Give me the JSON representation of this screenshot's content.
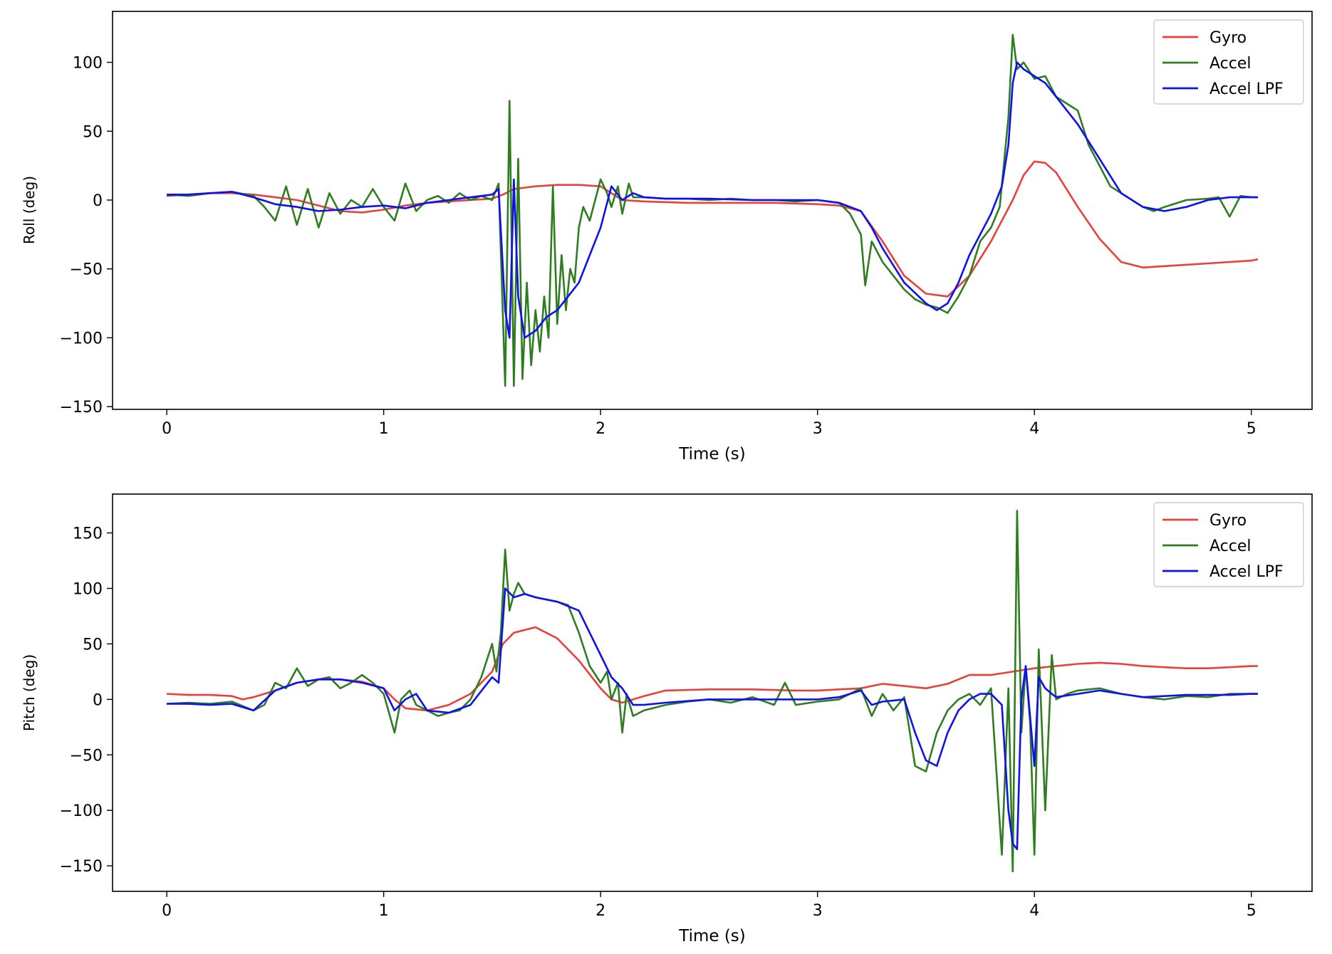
{
  "chart_data": [
    {
      "type": "line",
      "xlabel": "Time (s)",
      "ylabel": "Roll (deg)",
      "xlim": [
        -0.25,
        5.28
      ],
      "ylim": [
        -152,
        137
      ],
      "xticks": [
        0,
        1,
        2,
        3,
        4,
        5
      ],
      "yticks": [
        -150,
        -100,
        -50,
        0,
        50,
        100
      ],
      "grid": false,
      "legend": {
        "position": "top-right",
        "entries": [
          "Gyro",
          "Accel",
          "Accel LPF"
        ]
      },
      "series": [
        {
          "name": "Gyro",
          "color": "#e8403a",
          "x": [
            0,
            0.1,
            0.2,
            0.3,
            0.4,
            0.5,
            0.6,
            0.7,
            0.8,
            0.9,
            1.0,
            1.1,
            1.2,
            1.3,
            1.4,
            1.5,
            1.55,
            1.6,
            1.7,
            1.8,
            1.9,
            2.0,
            2.05,
            2.1,
            2.2,
            2.4,
            2.6,
            2.8,
            3.0,
            3.1,
            3.2,
            3.3,
            3.4,
            3.5,
            3.6,
            3.7,
            3.8,
            3.85,
            3.9,
            3.95,
            4.0,
            4.05,
            4.1,
            4.2,
            4.3,
            4.4,
            4.5,
            4.6,
            4.7,
            4.8,
            4.9,
            5.0,
            5.03
          ],
          "y": [
            3,
            4,
            5,
            5,
            4,
            2,
            0,
            -4,
            -8,
            -9,
            -7,
            -4,
            -2,
            -1,
            0,
            1,
            4,
            8,
            10,
            11,
            11,
            10,
            5,
            0,
            -1,
            -2,
            -2,
            -2,
            -3,
            -4,
            -8,
            -30,
            -55,
            -68,
            -70,
            -55,
            -30,
            -15,
            0,
            18,
            28,
            27,
            20,
            -5,
            -28,
            -45,
            -49,
            -48,
            -47,
            -46,
            -45,
            -44,
            -43
          ]
        },
        {
          "name": "Accel",
          "color": "#2e7d1f",
          "x": [
            0,
            0.1,
            0.2,
            0.3,
            0.4,
            0.45,
            0.5,
            0.55,
            0.6,
            0.65,
            0.7,
            0.75,
            0.8,
            0.85,
            0.9,
            0.95,
            1.0,
            1.05,
            1.1,
            1.15,
            1.2,
            1.25,
            1.3,
            1.35,
            1.4,
            1.45,
            1.5,
            1.53,
            1.56,
            1.58,
            1.6,
            1.62,
            1.64,
            1.66,
            1.68,
            1.7,
            1.72,
            1.74,
            1.76,
            1.78,
            1.8,
            1.82,
            1.84,
            1.86,
            1.88,
            1.9,
            1.92,
            1.95,
            2.0,
            2.03,
            2.05,
            2.08,
            2.1,
            2.13,
            2.15,
            2.2,
            2.3,
            2.4,
            2.5,
            2.6,
            2.7,
            2.8,
            2.9,
            3.0,
            3.1,
            3.15,
            3.2,
            3.22,
            3.25,
            3.3,
            3.35,
            3.4,
            3.45,
            3.5,
            3.55,
            3.6,
            3.65,
            3.7,
            3.75,
            3.8,
            3.84,
            3.88,
            3.9,
            3.92,
            3.95,
            4.0,
            4.05,
            4.1,
            4.15,
            4.2,
            4.25,
            4.3,
            4.35,
            4.4,
            4.45,
            4.5,
            4.55,
            4.6,
            4.7,
            4.8,
            4.85,
            4.9,
            4.95,
            5.0,
            5.03
          ],
          "y": [
            4,
            3,
            5,
            6,
            3,
            -5,
            -15,
            10,
            -18,
            8,
            -20,
            5,
            -10,
            0,
            -5,
            8,
            -5,
            -15,
            12,
            -8,
            0,
            3,
            -2,
            5,
            0,
            3,
            0,
            12,
            -135,
            72,
            -135,
            30,
            -130,
            -60,
            -120,
            -80,
            -110,
            -70,
            -100,
            10,
            -90,
            -40,
            -80,
            -50,
            -60,
            -20,
            -5,
            -15,
            15,
            5,
            -5,
            10,
            -10,
            12,
            2,
            2,
            1,
            1,
            0,
            1,
            0,
            0,
            -1,
            0,
            -2,
            -10,
            -25,
            -62,
            -30,
            -45,
            -55,
            -65,
            -72,
            -76,
            -78,
            -82,
            -70,
            -55,
            -30,
            -20,
            -5,
            60,
            120,
            95,
            100,
            88,
            90,
            75,
            70,
            65,
            40,
            25,
            10,
            5,
            0,
            -5,
            -8,
            -5,
            0,
            1,
            2,
            -12,
            3,
            2,
            2
          ]
        },
        {
          "name": "Accel LPF",
          "color": "#1010ee",
          "x": [
            0,
            0.1,
            0.2,
            0.3,
            0.4,
            0.5,
            0.6,
            0.7,
            0.8,
            0.9,
            1.0,
            1.1,
            1.2,
            1.3,
            1.4,
            1.5,
            1.53,
            1.56,
            1.58,
            1.6,
            1.62,
            1.65,
            1.7,
            1.75,
            1.8,
            1.85,
            1.9,
            1.95,
            2.0,
            2.05,
            2.1,
            2.15,
            2.2,
            2.3,
            2.5,
            2.7,
            2.9,
            3.0,
            3.1,
            3.2,
            3.25,
            3.3,
            3.4,
            3.5,
            3.55,
            3.6,
            3.65,
            3.7,
            3.75,
            3.8,
            3.85,
            3.88,
            3.9,
            3.92,
            3.95,
            4.0,
            4.05,
            4.1,
            4.2,
            4.3,
            4.4,
            4.5,
            4.6,
            4.7,
            4.8,
            4.9,
            5.0,
            5.03
          ],
          "y": [
            4,
            4,
            5,
            6,
            2,
            -3,
            -5,
            -8,
            -7,
            -5,
            -4,
            -6,
            -2,
            0,
            2,
            4,
            8,
            -80,
            -100,
            15,
            -70,
            -100,
            -95,
            -85,
            -80,
            -70,
            -60,
            -40,
            -20,
            10,
            0,
            5,
            2,
            1,
            1,
            0,
            0,
            0,
            -2,
            -8,
            -20,
            -35,
            -60,
            -75,
            -80,
            -75,
            -60,
            -40,
            -25,
            -10,
            10,
            40,
            85,
            100,
            95,
            90,
            85,
            75,
            55,
            30,
            5,
            -5,
            -8,
            -5,
            0,
            2,
            2,
            2
          ]
        }
      ]
    },
    {
      "type": "line",
      "xlabel": "Time (s)",
      "ylabel": "Pitch (deg)",
      "xlim": [
        -0.25,
        5.28
      ],
      "ylim": [
        -173,
        185
      ],
      "xticks": [
        0,
        1,
        2,
        3,
        4,
        5
      ],
      "yticks": [
        -150,
        -100,
        -50,
        0,
        50,
        100,
        150
      ],
      "grid": false,
      "legend": {
        "position": "top-right",
        "entries": [
          "Gyro",
          "Accel",
          "Accel LPF"
        ]
      },
      "series": [
        {
          "name": "Gyro",
          "color": "#e8403a",
          "x": [
            0,
            0.1,
            0.2,
            0.3,
            0.35,
            0.4,
            0.5,
            0.6,
            0.7,
            0.8,
            0.9,
            1.0,
            1.05,
            1.1,
            1.2,
            1.3,
            1.4,
            1.5,
            1.55,
            1.6,
            1.7,
            1.8,
            1.9,
            2.0,
            2.05,
            2.1,
            2.2,
            2.3,
            2.5,
            2.7,
            2.9,
            3.0,
            3.1,
            3.2,
            3.3,
            3.4,
            3.5,
            3.6,
            3.7,
            3.8,
            3.9,
            4.0,
            4.1,
            4.2,
            4.3,
            4.4,
            4.5,
            4.6,
            4.7,
            4.8,
            4.9,
            5.0,
            5.03
          ],
          "y": [
            5,
            4,
            4,
            3,
            0,
            2,
            8,
            15,
            18,
            18,
            16,
            10,
            0,
            -8,
            -10,
            -5,
            5,
            25,
            50,
            60,
            65,
            55,
            35,
            10,
            0,
            -3,
            3,
            8,
            9,
            9,
            8,
            8,
            9,
            10,
            14,
            12,
            10,
            14,
            22,
            22,
            25,
            28,
            30,
            32,
            33,
            32,
            30,
            29,
            28,
            28,
            29,
            30,
            30
          ]
        },
        {
          "name": "Accel",
          "color": "#2e7d1f",
          "x": [
            0,
            0.1,
            0.2,
            0.3,
            0.4,
            0.45,
            0.5,
            0.55,
            0.6,
            0.65,
            0.7,
            0.75,
            0.8,
            0.85,
            0.9,
            0.95,
            1.0,
            1.05,
            1.08,
            1.12,
            1.15,
            1.2,
            1.25,
            1.3,
            1.35,
            1.4,
            1.45,
            1.5,
            1.52,
            1.54,
            1.56,
            1.58,
            1.6,
            1.62,
            1.65,
            1.7,
            1.75,
            1.8,
            1.85,
            1.9,
            1.95,
            2.0,
            2.03,
            2.05,
            2.08,
            2.1,
            2.12,
            2.15,
            2.2,
            2.3,
            2.4,
            2.5,
            2.6,
            2.7,
            2.8,
            2.85,
            2.9,
            3.0,
            3.1,
            3.2,
            3.25,
            3.3,
            3.35,
            3.4,
            3.45,
            3.5,
            3.55,
            3.6,
            3.65,
            3.7,
            3.75,
            3.8,
            3.85,
            3.88,
            3.9,
            3.92,
            3.94,
            3.96,
            3.98,
            4.0,
            4.02,
            4.05,
            4.08,
            4.1,
            4.15,
            4.2,
            4.3,
            4.4,
            4.5,
            4.6,
            4.7,
            4.8,
            4.9,
            5.0,
            5.03
          ],
          "y": [
            -4,
            -3,
            -4,
            -2,
            -10,
            -5,
            15,
            10,
            28,
            12,
            18,
            20,
            10,
            15,
            22,
            15,
            5,
            -30,
            0,
            8,
            -5,
            -10,
            -15,
            -12,
            -10,
            0,
            20,
            50,
            25,
            60,
            135,
            80,
            95,
            105,
            95,
            92,
            90,
            88,
            85,
            60,
            30,
            15,
            25,
            0,
            15,
            -30,
            5,
            -15,
            -10,
            -5,
            -2,
            0,
            -3,
            2,
            -5,
            15,
            -5,
            -2,
            0,
            10,
            -15,
            5,
            -10,
            2,
            -60,
            -65,
            -30,
            -10,
            0,
            5,
            -5,
            10,
            -140,
            10,
            -155,
            170,
            -30,
            30,
            -20,
            -140,
            45,
            -100,
            40,
            0,
            5,
            8,
            10,
            5,
            2,
            0,
            3,
            2,
            5,
            5,
            5
          ]
        },
        {
          "name": "Accel LPF",
          "color": "#1010ee",
          "x": [
            0,
            0.1,
            0.2,
            0.3,
            0.4,
            0.5,
            0.6,
            0.7,
            0.8,
            0.9,
            1.0,
            1.05,
            1.1,
            1.15,
            1.2,
            1.3,
            1.4,
            1.5,
            1.53,
            1.56,
            1.6,
            1.65,
            1.7,
            1.8,
            1.9,
            1.95,
            2.0,
            2.05,
            2.1,
            2.15,
            2.2,
            2.3,
            2.5,
            2.7,
            2.9,
            3.0,
            3.1,
            3.2,
            3.25,
            3.3,
            3.4,
            3.45,
            3.5,
            3.55,
            3.6,
            3.65,
            3.7,
            3.75,
            3.8,
            3.85,
            3.88,
            3.9,
            3.92,
            3.94,
            3.96,
            4.0,
            4.02,
            4.05,
            4.08,
            4.1,
            4.2,
            4.3,
            4.4,
            4.5,
            4.6,
            4.7,
            4.8,
            4.9,
            5.0,
            5.03
          ],
          "y": [
            -4,
            -4,
            -5,
            -4,
            -10,
            8,
            15,
            18,
            18,
            15,
            10,
            -10,
            0,
            5,
            -10,
            -12,
            -5,
            20,
            15,
            100,
            92,
            95,
            92,
            88,
            80,
            60,
            40,
            20,
            10,
            -5,
            -5,
            -3,
            0,
            0,
            0,
            0,
            2,
            8,
            -5,
            -2,
            0,
            -30,
            -55,
            -60,
            -30,
            -10,
            0,
            5,
            5,
            -5,
            -100,
            -130,
            -135,
            0,
            30,
            -60,
            20,
            10,
            5,
            2,
            5,
            8,
            5,
            2,
            3,
            4,
            4,
            4,
            5,
            5
          ]
        }
      ]
    }
  ]
}
